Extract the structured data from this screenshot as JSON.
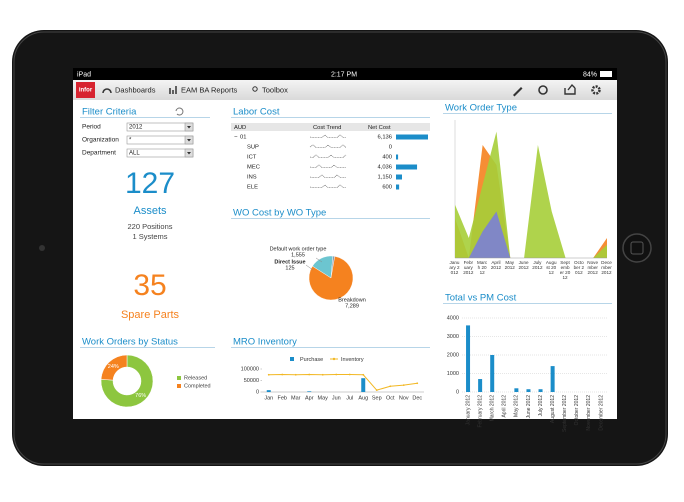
{
  "status_bar": {
    "device": "iPad",
    "time": "2:17 PM",
    "battery": "84%"
  },
  "toolbar": {
    "logo": "infor",
    "tabs": [
      "Dashboards",
      "EAM BA Reports",
      "Toolbox"
    ]
  },
  "filter": {
    "title": "Filter Criteria",
    "fields": [
      {
        "label": "Period",
        "value": "2012"
      },
      {
        "label": "Organization",
        "value": "*"
      },
      {
        "label": "Department",
        "value": "ALL"
      }
    ]
  },
  "assets": {
    "value": 127,
    "label": "Assets",
    "lines": [
      "220 Positions",
      "1 Systems"
    ]
  },
  "spare_parts": {
    "value": 35,
    "label": "Spare Parts"
  },
  "wo_status": {
    "title": "Work Orders by Status",
    "type": "pie",
    "categories": [
      "Released",
      "Completed"
    ],
    "values": [
      76,
      24
    ],
    "value_labels": [
      "76%",
      "24%"
    ],
    "colors": [
      "#8dc63f",
      "#f5821f"
    ]
  },
  "labor_cost": {
    "title": "Labor Cost",
    "columns": [
      "AUD",
      "Cost Trend",
      "Net Cost"
    ],
    "categories": [
      "01",
      "SUP",
      "ICT",
      "MEC",
      "INS",
      "ELE"
    ],
    "values": [
      6136,
      0,
      400,
      4036,
      1150,
      600
    ],
    "value_labels": [
      "6,136",
      "0",
      "400",
      "4,036",
      "1,150",
      "600"
    ],
    "color": "#1b8dc9"
  },
  "wo_cost": {
    "title": "WO Cost by WO Type",
    "type": "pie",
    "categories": [
      "Default work order type",
      "Direct Issue",
      "Breakdown"
    ],
    "values": [
      1555,
      125,
      7289
    ],
    "value_labels": [
      "1,555",
      "125",
      "7,289"
    ],
    "colors": [
      "#6cc5d0",
      "#8a9bb0",
      "#f5821f"
    ]
  },
  "mro": {
    "title": "MRO Inventory",
    "type": "bar",
    "categories": [
      "Jan",
      "Feb",
      "Mar",
      "Apr",
      "May",
      "Jun",
      "Jul",
      "Aug",
      "Sep",
      "Oct",
      "Nov",
      "Dec"
    ],
    "series": [
      {
        "name": "Purchase",
        "color": "#1b8dc9",
        "values": [
          8000,
          0,
          0,
          3000,
          0,
          0,
          0,
          60000,
          0,
          0,
          0,
          0
        ]
      },
      {
        "name": "Inventory",
        "color": "#f2b824",
        "values": [
          75000,
          76000,
          75000,
          76000,
          75000,
          76000,
          76000,
          75000,
          8000,
          25000,
          30000,
          38000
        ]
      }
    ],
    "ylim": [
      0,
      100000
    ],
    "yticks": [
      0,
      50000,
      100000
    ]
  },
  "wo_type": {
    "title": "Work Order Type",
    "type": "area",
    "categories": [
      "January 2012",
      "February 2012",
      "March 2012",
      "April 2012",
      "May 2012",
      "June 2012",
      "July 2012",
      "August 2012",
      "September 2012",
      "October 2012",
      "November 2012",
      "December 2012"
    ],
    "series": [
      {
        "color": "#f5821f",
        "values": [
          30,
          0,
          85,
          70,
          0,
          0,
          0,
          0,
          0,
          0,
          0,
          15
        ]
      },
      {
        "color": "#a6ce39",
        "values": [
          40,
          15,
          55,
          95,
          0,
          0,
          85,
          35,
          0,
          0,
          0,
          10
        ]
      },
      {
        "color": "#7b7fd6",
        "values": [
          0,
          0,
          20,
          35,
          0,
          0,
          0,
          0,
          0,
          0,
          0,
          0
        ]
      }
    ],
    "ylim": [
      0,
      100
    ]
  },
  "total_pm": {
    "title": "Total vs PM Cost",
    "type": "bar",
    "categories": [
      "January 2012",
      "February 2012",
      "March 2012",
      "April 2012",
      "May 2012",
      "June 2012",
      "July 2012",
      "August 2012",
      "September 2012",
      "October 2012",
      "November 2012",
      "December 2012"
    ],
    "values": [
      3600,
      700,
      2000,
      0,
      200,
      150,
      150,
      1400,
      0,
      0,
      0,
      0
    ],
    "color": "#1b8dc9",
    "ylim": [
      0,
      4000
    ],
    "yticks": [
      0,
      1000,
      2000,
      3000,
      4000
    ],
    "grid": true
  }
}
